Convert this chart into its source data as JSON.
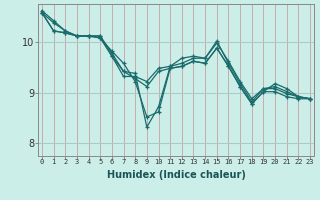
{
  "xlabel": "Humidex (Indice chaleur)",
  "ylabel": "",
  "bg_color": "#cceee8",
  "line_color": "#1a6b6b",
  "grid_color_v": "#c8a0a0",
  "grid_color_h": "#a8ccc8",
  "ylim": [
    7.75,
    10.75
  ],
  "xlim": [
    -0.3,
    23.3
  ],
  "yticks": [
    8,
    9,
    10
  ],
  "xticks": [
    0,
    1,
    2,
    3,
    4,
    5,
    6,
    7,
    8,
    9,
    10,
    11,
    12,
    13,
    14,
    15,
    16,
    17,
    18,
    19,
    20,
    21,
    22,
    23
  ],
  "series": [
    [
      10.58,
      10.38,
      10.22,
      10.12,
      10.12,
      10.08,
      9.82,
      9.58,
      9.22,
      8.52,
      8.62,
      9.48,
      9.52,
      9.62,
      9.58,
      9.88,
      9.52,
      9.12,
      8.78,
      9.02,
      9.18,
      9.08,
      8.92,
      8.88
    ],
    [
      10.58,
      10.22,
      10.18,
      10.12,
      10.12,
      10.08,
      9.72,
      9.42,
      9.28,
      9.12,
      9.42,
      9.48,
      9.52,
      9.62,
      9.58,
      9.88,
      9.52,
      9.12,
      8.78,
      9.02,
      9.02,
      8.92,
      8.88,
      8.88
    ],
    [
      10.58,
      10.22,
      10.18,
      10.12,
      10.12,
      10.12,
      9.72,
      9.32,
      9.32,
      9.22,
      9.48,
      9.52,
      9.68,
      9.72,
      9.68,
      9.98,
      9.62,
      9.22,
      8.88,
      9.08,
      9.08,
      8.98,
      8.92,
      8.88
    ],
    [
      10.62,
      10.42,
      10.22,
      10.12,
      10.12,
      10.12,
      9.78,
      9.42,
      9.38,
      8.32,
      8.72,
      9.52,
      9.58,
      9.68,
      9.68,
      10.02,
      9.58,
      9.18,
      8.82,
      9.08,
      9.12,
      9.02,
      8.92,
      8.88
    ]
  ]
}
